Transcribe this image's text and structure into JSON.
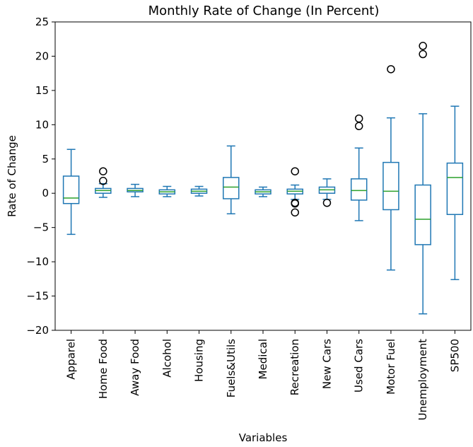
{
  "chart_data": {
    "type": "boxplot",
    "title": "Monthly Rate of Change (In Percent)",
    "xlabel": "Variables",
    "ylabel": "Rate of Change",
    "ylim": [
      -20,
      25
    ],
    "yticks": [
      -20,
      -15,
      -10,
      -5,
      0,
      5,
      10,
      15,
      20,
      25
    ],
    "ytick_labels": [
      "−20",
      "−15",
      "−10",
      "−5",
      "0",
      "5",
      "10",
      "15",
      "20",
      "25"
    ],
    "grid": false,
    "colors": {
      "box": "#1f77b4",
      "median": "#2ca02c",
      "outlier": "#000000",
      "frame": "#000000"
    },
    "categories": [
      "Apparel",
      "Home Food",
      "Away Food",
      "Alcohol",
      "Housing",
      "Fuels&Utils",
      "Medical",
      "Recreation",
      "New Cars",
      "Used Cars",
      "Motor Fuel",
      "Unemployment",
      "SP500"
    ],
    "boxes": [
      {
        "whisker_low": -6.0,
        "q1": -1.5,
        "median": -0.7,
        "q3": 2.5,
        "whisker_high": 6.4,
        "outliers": []
      },
      {
        "whisker_low": -0.6,
        "q1": 0.0,
        "median": 0.4,
        "q3": 0.7,
        "whisker_high": 1.4,
        "outliers": [
          1.8,
          3.2
        ]
      },
      {
        "whisker_low": -0.5,
        "q1": 0.2,
        "median": 0.4,
        "q3": 0.7,
        "whisker_high": 1.3,
        "outliers": []
      },
      {
        "whisker_low": -0.5,
        "q1": -0.1,
        "median": 0.2,
        "q3": 0.5,
        "whisker_high": 1.0,
        "outliers": []
      },
      {
        "whisker_low": -0.4,
        "q1": 0.0,
        "median": 0.3,
        "q3": 0.6,
        "whisker_high": 1.0,
        "outliers": []
      },
      {
        "whisker_low": -3.0,
        "q1": -0.8,
        "median": 0.9,
        "q3": 2.3,
        "whisker_high": 6.9,
        "outliers": []
      },
      {
        "whisker_low": -0.5,
        "q1": -0.1,
        "median": 0.2,
        "q3": 0.5,
        "whisker_high": 0.9,
        "outliers": []
      },
      {
        "whisker_low": -0.9,
        "q1": -0.1,
        "median": 0.3,
        "q3": 0.6,
        "whisker_high": 1.2,
        "outliers": [
          3.2,
          -1.4,
          -1.5,
          -2.8
        ]
      },
      {
        "whisker_low": -0.9,
        "q1": 0.0,
        "median": 0.5,
        "q3": 0.9,
        "whisker_high": 2.1,
        "outliers": [
          -1.4
        ]
      },
      {
        "whisker_low": -4.0,
        "q1": -1.0,
        "median": 0.4,
        "q3": 2.1,
        "whisker_high": 6.6,
        "outliers": [
          9.8,
          10.9
        ]
      },
      {
        "whisker_low": -11.2,
        "q1": -2.4,
        "median": 0.3,
        "q3": 4.5,
        "whisker_high": 11.0,
        "outliers": [
          18.1
        ]
      },
      {
        "whisker_low": -17.6,
        "q1": -7.5,
        "median": -3.8,
        "q3": 1.2,
        "whisker_high": 11.6,
        "outliers": [
          20.3,
          21.5
        ]
      },
      {
        "whisker_low": -12.6,
        "q1": -3.1,
        "median": 2.3,
        "q3": 4.4,
        "whisker_high": 12.7,
        "outliers": []
      }
    ]
  }
}
